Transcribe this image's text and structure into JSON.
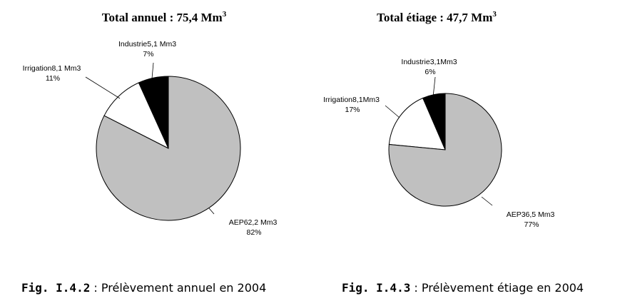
{
  "chart_data": [
    {
      "type": "pie",
      "title": "Total annuel : 75,4 Mm",
      "title_sup": "3",
      "slices": [
        {
          "name": "Industrie",
          "value": 5.1,
          "value_text": "5,1 Mm3",
          "percent": 7,
          "percent_text": "7%",
          "color": "#000000"
        },
        {
          "name": "Irrigation",
          "value": 8.1,
          "value_text": "8,1 Mm3",
          "percent": 11,
          "percent_text": "11%",
          "color": "#ffffff"
        },
        {
          "name": "AEP",
          "value": 62.2,
          "value_text": "62,2 Mm3",
          "percent": 82,
          "percent_text": "82%",
          "color": "#c0c0c0"
        }
      ]
    },
    {
      "type": "pie",
      "title": "Total étiage : 47,7 Mm",
      "title_sup": "3",
      "slices": [
        {
          "name": "Industrie",
          "value": 3.1,
          "value_text": "3,1Mm3",
          "percent": 6,
          "percent_text": "6%",
          "color": "#000000"
        },
        {
          "name": "Irrigation",
          "value": 8.1,
          "value_text": "8,1Mm3",
          "percent": 17,
          "percent_text": "17%",
          "color": "#ffffff"
        },
        {
          "name": "AEP",
          "value": 36.5,
          "value_text": "36,5 Mm3",
          "percent": 77,
          "percent_text": "77%",
          "color": "#c0c0c0"
        }
      ]
    }
  ],
  "captions": [
    {
      "fig": "Fig. I.4.2",
      "text": " : Prélèvement annuel en 2004"
    },
    {
      "fig": "Fig. I.4.3",
      "text": " : Prélèvement étiage en 2004"
    }
  ]
}
